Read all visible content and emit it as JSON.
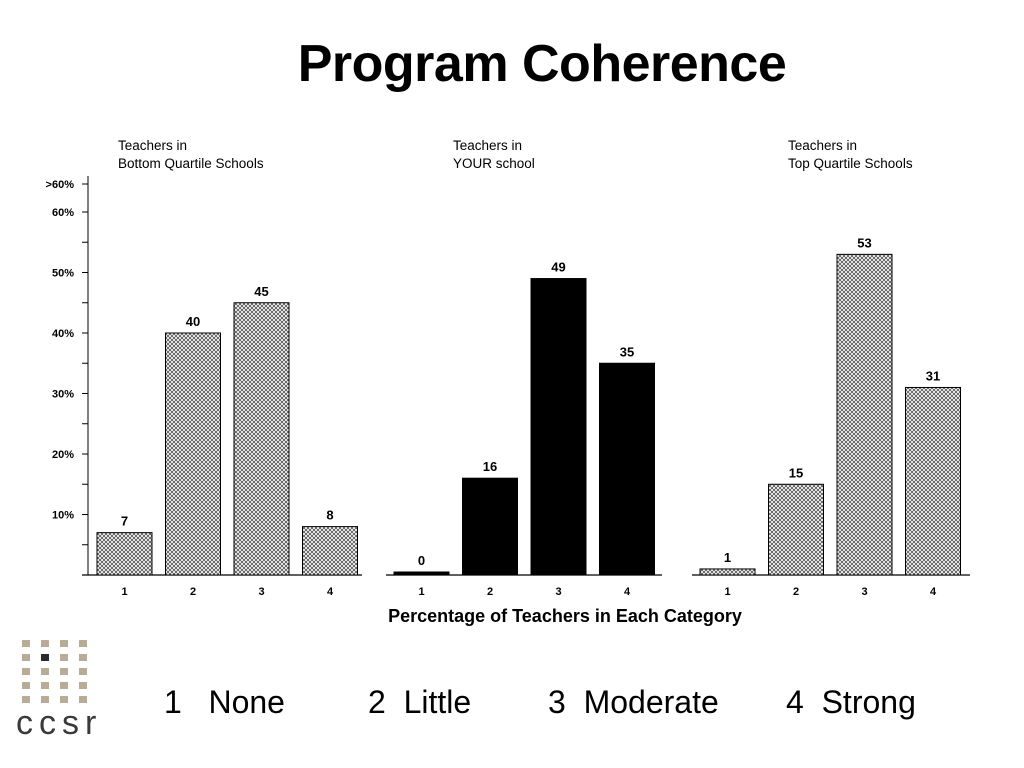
{
  "title": "Program Coherence",
  "chart_data": {
    "type": "bar",
    "x_title": "Percentage of Teachers in Each Category",
    "y_tick_labels": [
      ">60%",
      "60%",
      "50%",
      "40%",
      "30%",
      "20%",
      "10%"
    ],
    "ylim": [
      0,
      65
    ],
    "categories": [
      "1",
      "2",
      "3",
      "4"
    ],
    "panels": [
      {
        "header_line1": "Teachers in",
        "header_line2": "Bottom Quartile Schools",
        "values": [
          7,
          40,
          45,
          8
        ],
        "style": "hatched"
      },
      {
        "header_line1": "Teachers in",
        "header_line2": "YOUR school",
        "values": [
          0,
          16,
          49,
          35
        ],
        "style": "solid"
      },
      {
        "header_line1": "Teachers in",
        "header_line2": "Top Quartile Schools",
        "values": [
          1,
          15,
          53,
          31
        ],
        "style": "hatched"
      }
    ]
  },
  "legend": [
    {
      "num": "1",
      "label": "None"
    },
    {
      "num": "2",
      "label": "Little"
    },
    {
      "num": "3",
      "label": "Moderate"
    },
    {
      "num": "4",
      "label": "Strong"
    }
  ],
  "logo": {
    "text": "ccsr"
  }
}
